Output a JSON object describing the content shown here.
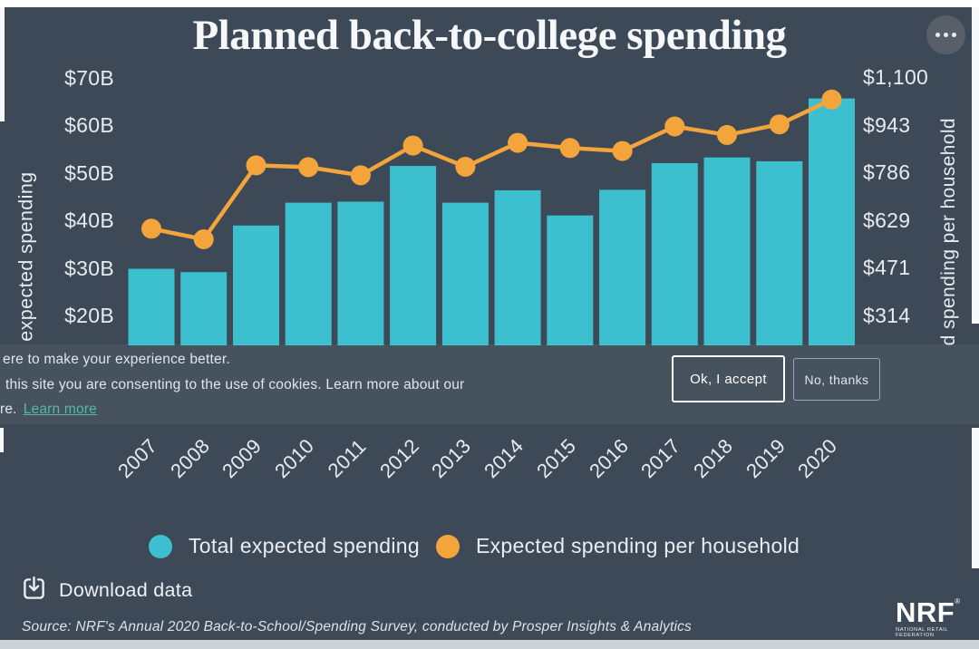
{
  "title": "Planned back-to-college spending",
  "more_menu": {
    "icon": "ellipsis-icon"
  },
  "axes": {
    "left": {
      "title": "Total expected spending",
      "tick_labels": [
        "$70B",
        "$60B",
        "$50B",
        "$40B",
        "$30B",
        "$20B"
      ],
      "tick_values": [
        70,
        60,
        50,
        40,
        30,
        20
      ]
    },
    "right": {
      "title": "Expected spending per household",
      "tick_labels": [
        "$1,100",
        "$943",
        "$786",
        "$629",
        "$471",
        "$314"
      ],
      "tick_values": [
        1100,
        943,
        786,
        629,
        471,
        314
      ]
    }
  },
  "chart_data": {
    "type": "combo",
    "title": "Planned back-to-college spending",
    "categories": [
      "2007",
      "2008",
      "2009",
      "2010",
      "2011",
      "2012",
      "2013",
      "2014",
      "2015",
      "2016",
      "2017",
      "2018",
      "2019",
      "2020"
    ],
    "series": [
      {
        "name": "Total expected spending",
        "type": "bar",
        "axis": "left",
        "unit": "USD billions",
        "color": "#3cc0cf",
        "values": [
          31.9,
          31.2,
          41.0,
          45.8,
          46.0,
          53.5,
          45.8,
          48.4,
          43.1,
          48.5,
          54.1,
          55.3,
          54.5,
          67.7
        ]
      },
      {
        "name": "Expected spending per household",
        "type": "line",
        "axis": "right",
        "unit": "USD",
        "color": "#f3a53c",
        "values": [
          633,
          598,
          842,
          836,
          809,
          907,
          837,
          916,
          899,
          889,
          970,
          942,
          977,
          1059
        ]
      }
    ],
    "left_axis_range_shown": [
      20,
      70
    ],
    "right_axis_range_shown": [
      314,
      1100
    ],
    "grid": false,
    "legend_position": "bottom"
  },
  "cookie_banner": {
    "line1": "ere to make your experience better.",
    "line2": "this site you are consenting to the use of cookies. Learn more about our",
    "line3_prefix": "re.",
    "link_label": "Learn more",
    "accept_label": "Ok, I accept",
    "decline_label": "No, thanks"
  },
  "footer": {
    "download_label": "Download data",
    "source": "Source: NRF's Annual 2020 Back-to-School/Spending Survey, conducted by Prosper Insights & Analytics",
    "logo_text": "NRF",
    "logo_caption": "NATIONAL RETAIL FEDERATION"
  },
  "colors": {
    "background": "#3d4957",
    "banner": "#47525f",
    "bar": "#3cc0cf",
    "line": "#f3a53c",
    "link": "#55b8aa",
    "text": "#e9edf1"
  }
}
